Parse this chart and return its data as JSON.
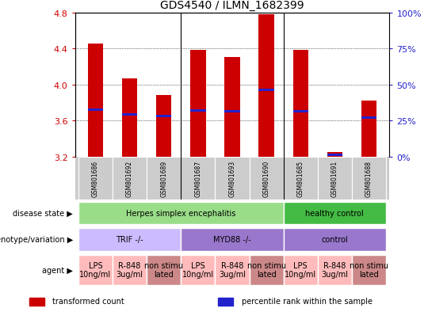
{
  "title": "GDS4540 / ILMN_1682399",
  "samples": [
    "GSM801686",
    "GSM801692",
    "GSM801689",
    "GSM801687",
    "GSM801693",
    "GSM801690",
    "GSM801685",
    "GSM801691",
    "GSM801688"
  ],
  "transformed_counts": [
    4.45,
    4.07,
    3.88,
    4.38,
    4.3,
    4.78,
    4.38,
    3.25,
    3.82
  ],
  "percentile_ranks_y": [
    3.72,
    3.67,
    3.65,
    3.71,
    3.7,
    3.94,
    3.7,
    3.22,
    3.63
  ],
  "base_value": 3.2,
  "ylim": [
    3.2,
    4.8
  ],
  "yticks": [
    3.2,
    3.6,
    4.0,
    4.4,
    4.8
  ],
  "right_yticks": [
    0,
    25,
    50,
    75,
    100
  ],
  "bar_color": "#cc0000",
  "percentile_color": "#2222cc",
  "disease_state_rows": [
    {
      "label": "Herpes simplex encephalitis",
      "start": 0,
      "end": 6,
      "color": "#99dd88"
    },
    {
      "label": "healthy control",
      "start": 6,
      "end": 9,
      "color": "#44bb44"
    }
  ],
  "genotype_rows": [
    {
      "label": "TRIF -/-",
      "start": 0,
      "end": 3,
      "color": "#ccbbff"
    },
    {
      "label": "MYD88 -/-",
      "start": 3,
      "end": 6,
      "color": "#9977cc"
    },
    {
      "label": "control",
      "start": 6,
      "end": 9,
      "color": "#9977cc"
    }
  ],
  "agent_rows": [
    {
      "label": "LPS\n10ng/ml",
      "start": 0,
      "end": 1,
      "color": "#ffbbbb"
    },
    {
      "label": "R-848\n3ug/ml",
      "start": 1,
      "end": 2,
      "color": "#ffbbbb"
    },
    {
      "label": "non stimu\nlated",
      "start": 2,
      "end": 3,
      "color": "#cc8888"
    },
    {
      "label": "LPS\n10ng/ml",
      "start": 3,
      "end": 4,
      "color": "#ffbbbb"
    },
    {
      "label": "R-848\n3ug/ml",
      "start": 4,
      "end": 5,
      "color": "#ffbbbb"
    },
    {
      "label": "non stimu\nlated",
      "start": 5,
      "end": 6,
      "color": "#cc8888"
    },
    {
      "label": "LPS\n10ng/ml",
      "start": 6,
      "end": 7,
      "color": "#ffbbbb"
    },
    {
      "label": "R-848\n3ug/ml",
      "start": 7,
      "end": 8,
      "color": "#ffbbbb"
    },
    {
      "label": "non stimu\nlated",
      "start": 8,
      "end": 9,
      "color": "#cc8888"
    }
  ],
  "row_labels": [
    "disease state",
    "genotype/variation",
    "agent"
  ],
  "legend_items": [
    {
      "label": "transformed count",
      "color": "#cc0000"
    },
    {
      "label": "percentile rank within the sample",
      "color": "#2222cc"
    }
  ],
  "sample_bg_color": "#cccccc",
  "bar_width": 0.45,
  "group_dividers": [
    2.5,
    5.5
  ]
}
